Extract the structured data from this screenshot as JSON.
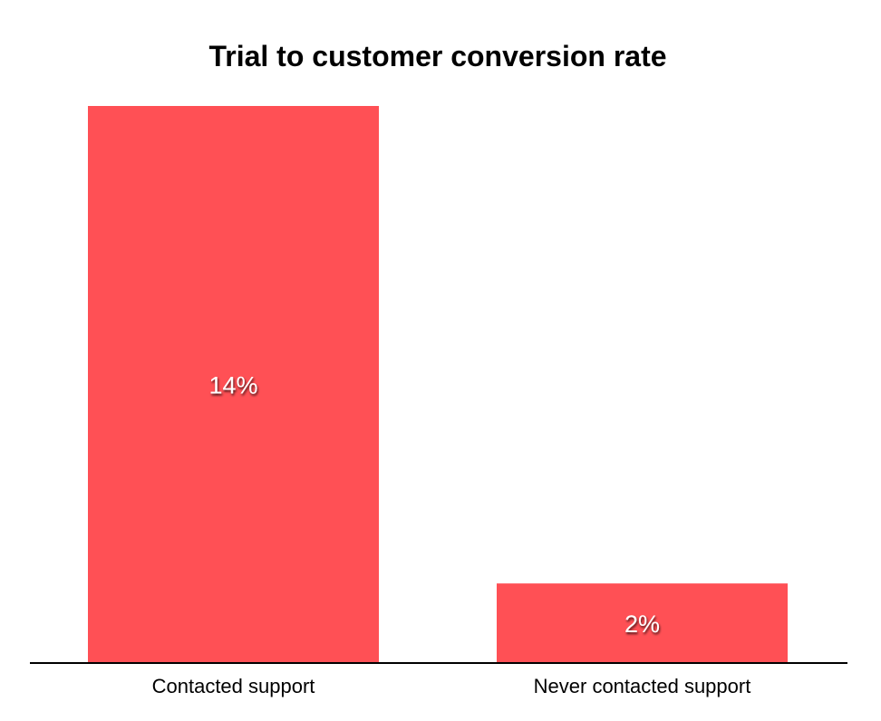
{
  "chart_data": {
    "type": "bar",
    "title": "Trial to customer conversion rate",
    "categories": [
      "Contacted support",
      "Never contacted support"
    ],
    "values": [
      14,
      2
    ],
    "data_labels": [
      "14%",
      "2%"
    ],
    "xlabel": "",
    "ylabel": "",
    "ylim": [
      0,
      14
    ],
    "grid": false,
    "bar_color": "#FF5055"
  }
}
